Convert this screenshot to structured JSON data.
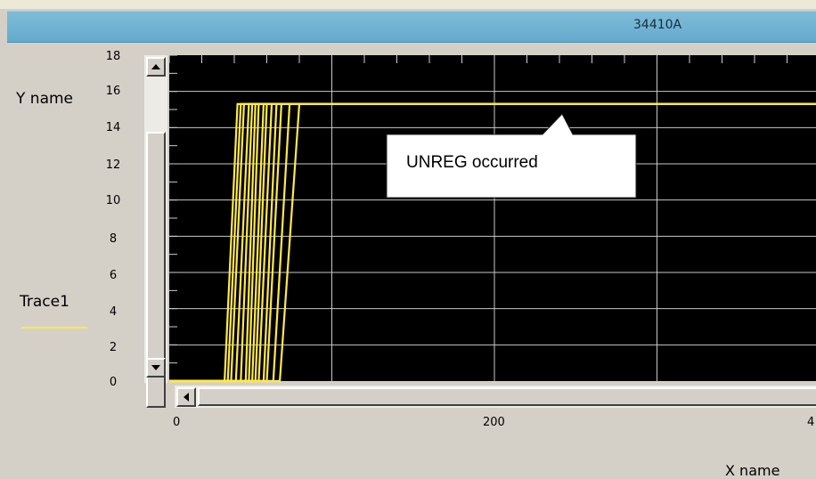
{
  "window": {
    "title": "34410A"
  },
  "legend": {
    "trace_name": "Trace1",
    "trace_color": "#ffe94a"
  },
  "callout": {
    "text": "UNREG  occurred"
  },
  "chart_data": {
    "type": "line",
    "ylabel": "Y name",
    "xlabel": "X name",
    "xlim": [
      0,
      400
    ],
    "ylim": [
      0,
      18
    ],
    "y_ticks": [
      "18",
      "16",
      "14",
      "12",
      "10",
      "8",
      "6",
      "4",
      "2",
      "0"
    ],
    "x_ticks": [
      "0",
      "200",
      "4"
    ],
    "grid": true,
    "background": "#000000",
    "series": [
      {
        "name": "Trace1",
        "x": [
          0,
          34,
          42,
          400
        ],
        "y": [
          0,
          0,
          15.3,
          15.3
        ]
      },
      {
        "name": "Trace1",
        "x": [
          0,
          36,
          44,
          400
        ],
        "y": [
          0,
          0,
          15.3,
          15.3
        ]
      },
      {
        "name": "Trace1",
        "x": [
          0,
          38,
          46,
          400
        ],
        "y": [
          0,
          0,
          15.3,
          15.3
        ]
      },
      {
        "name": "Trace1",
        "x": [
          0,
          41,
          49,
          400
        ],
        "y": [
          0,
          0,
          15.3,
          15.3
        ]
      },
      {
        "name": "Trace1",
        "x": [
          0,
          44,
          51,
          400
        ],
        "y": [
          0,
          0,
          15.3,
          15.3
        ]
      },
      {
        "name": "Trace1",
        "x": [
          0,
          47,
          53,
          400
        ],
        "y": [
          0,
          0,
          15.3,
          15.3
        ]
      },
      {
        "name": "Trace1",
        "x": [
          0,
          49,
          55,
          400
        ],
        "y": [
          0,
          0,
          15.3,
          15.3
        ]
      },
      {
        "name": "Trace1",
        "x": [
          0,
          51,
          58,
          400
        ],
        "y": [
          0,
          0,
          15.3,
          15.3
        ]
      },
      {
        "name": "Trace1",
        "x": [
          0,
          53,
          60,
          400
        ],
        "y": [
          0,
          0,
          15.3,
          15.3
        ]
      },
      {
        "name": "Trace1",
        "x": [
          0,
          55,
          63,
          400
        ],
        "y": [
          0,
          0,
          15.3,
          15.3
        ]
      },
      {
        "name": "Trace1",
        "x": [
          0,
          58,
          66,
          400
        ],
        "y": [
          0,
          0,
          15.3,
          15.3
        ]
      },
      {
        "name": "Trace1",
        "x": [
          0,
          60,
          69,
          400
        ],
        "y": [
          0,
          0,
          15.3,
          15.3
        ]
      },
      {
        "name": "Trace1",
        "x": [
          0,
          64,
          74,
          400
        ],
        "y": [
          0,
          0,
          15.3,
          15.3
        ]
      },
      {
        "name": "Trace1",
        "x": [
          0,
          68,
          80,
          400
        ],
        "y": [
          0,
          0,
          15.3,
          15.3
        ]
      }
    ]
  }
}
